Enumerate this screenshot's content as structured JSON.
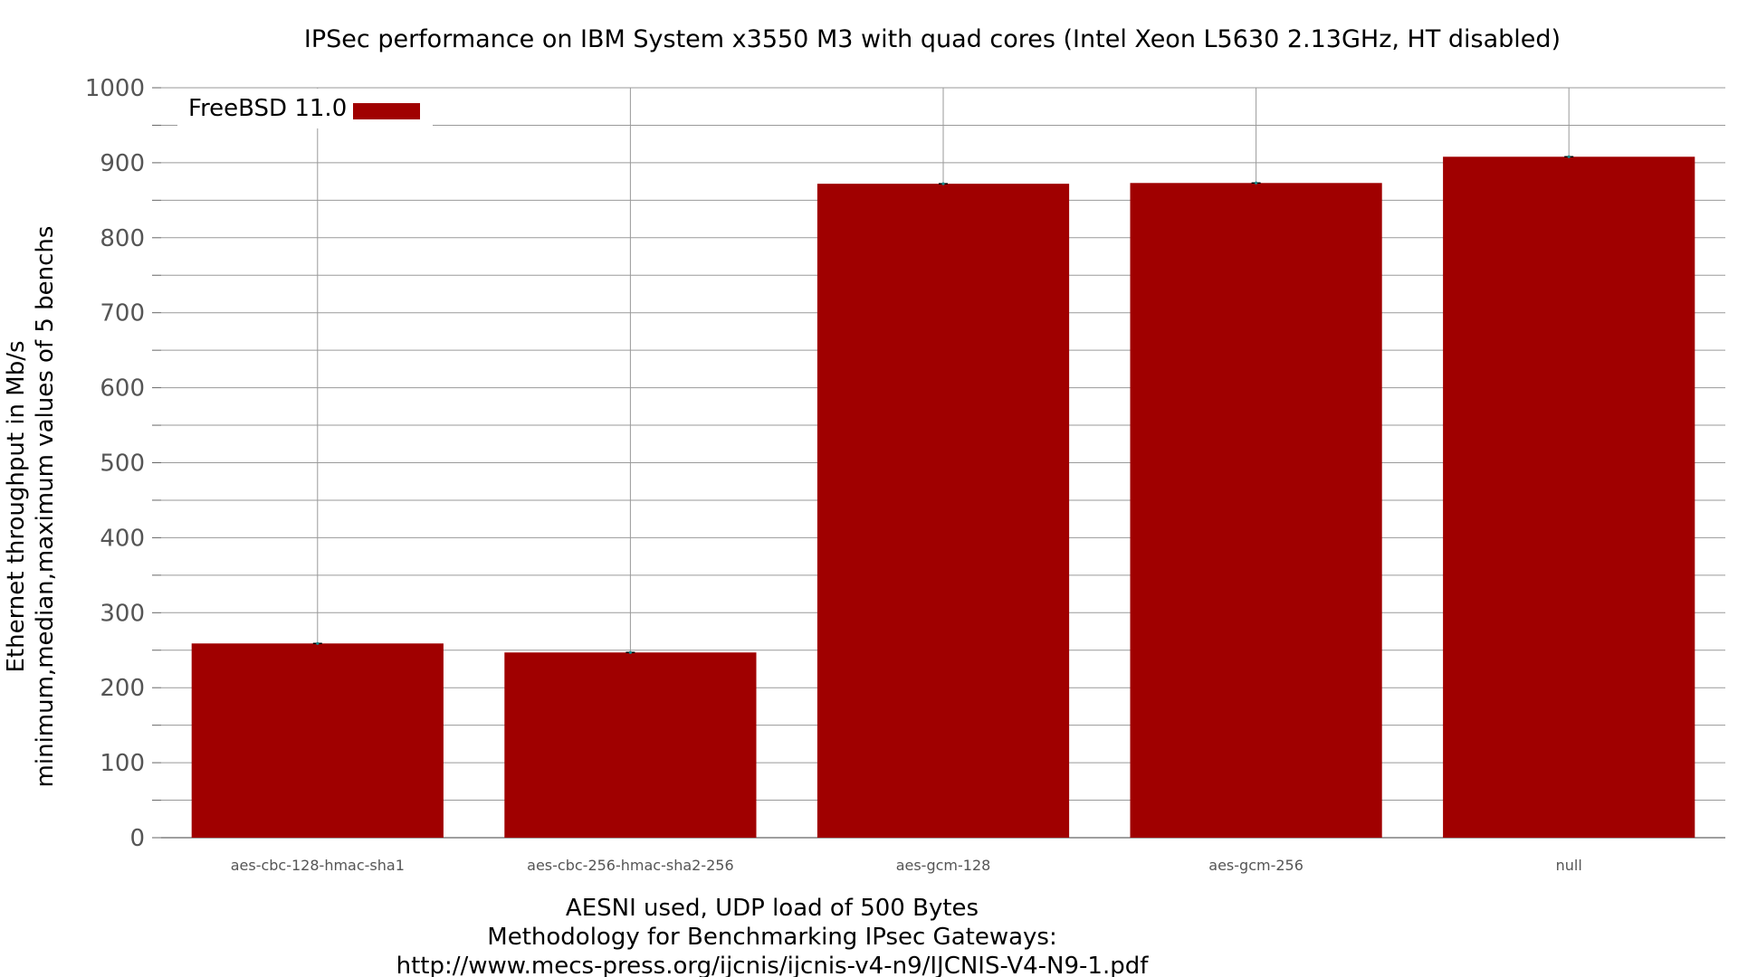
{
  "chart_data": {
    "type": "bar",
    "title": "IPSec performance on IBM System x3550 M3 with quad cores (Intel Xeon L5630 2.13GHz, HT disabled)",
    "ylabel_lines": [
      "Ethernet throughput in Mb/s",
      "minimum,median,maximum values of 5 benchs"
    ],
    "xlabel_lines": [
      "AESNI used, UDP load of 500 Bytes",
      "Methodology for Benchmarking IPsec Gateways:",
      "http://www.mecs-press.org/ijcnis/ijcnis-v4-n9/IJCNIS-V4-N9-1.pdf"
    ],
    "categories": [
      "aes-cbc-128-hmac-sha1",
      "aes-cbc-256-hmac-sha2-256",
      "aes-gcm-128",
      "aes-gcm-256",
      "null"
    ],
    "series": [
      {
        "name": "FreeBSD 11.0",
        "color": "#a00000",
        "values": [
          259,
          247,
          872,
          873,
          908
        ],
        "min": [
          258,
          246,
          871,
          872,
          907
        ],
        "max": [
          260,
          248,
          873,
          874,
          909
        ]
      }
    ],
    "ylim": [
      0,
      1000
    ],
    "yticks": [
      0,
      100,
      200,
      300,
      400,
      500,
      600,
      700,
      800,
      900,
      1000
    ],
    "grid": true,
    "legend_position": "top-left"
  }
}
